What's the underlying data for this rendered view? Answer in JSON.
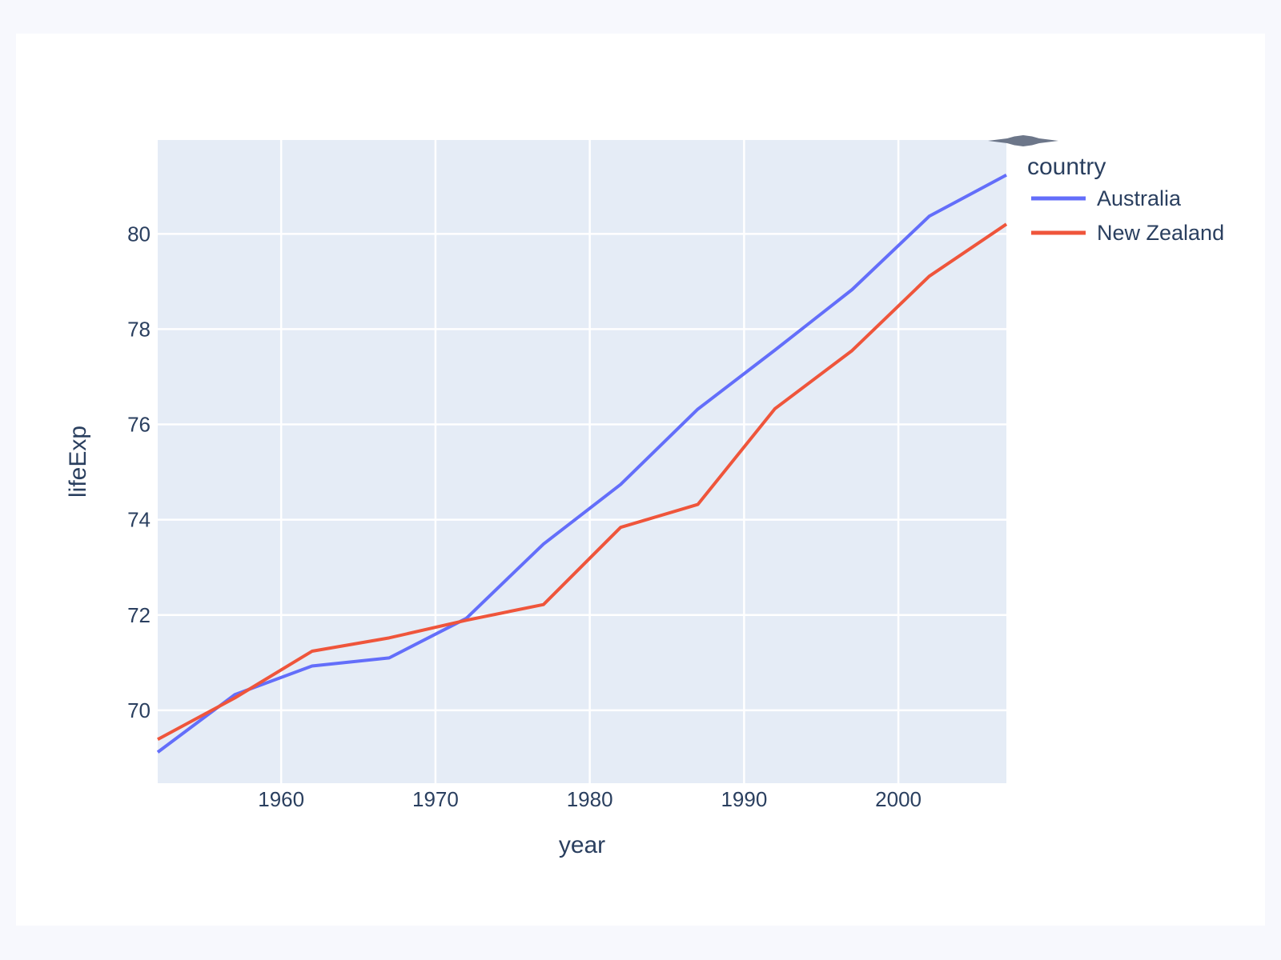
{
  "figure": {
    "legend": {
      "title": "country",
      "items": [
        {
          "label": "Australia",
          "color": "#636EFA"
        },
        {
          "label": "New Zealand",
          "color": "#EF553B"
        }
      ]
    },
    "colors": {
      "page_bg": "#F7F8FD",
      "paper_bg": "#FFFFFF",
      "plot_bg": "#E5ECF6",
      "grid": "#FFFFFF",
      "text": "#2A3F5F",
      "series_australia": "#636EFA",
      "series_new_zealand": "#EF553B",
      "modebar_icon": "#6C7689"
    },
    "icons": {
      "modebar_toggle": "collapsed-modebar-arrow"
    }
  },
  "chart_data": {
    "type": "line",
    "title": "",
    "xlabel": "year",
    "ylabel": "lifeExp",
    "legend_title": "country",
    "legend_position": "outside-top-right",
    "grid": true,
    "x": [
      1952,
      1957,
      1962,
      1967,
      1972,
      1977,
      1982,
      1987,
      1992,
      1997,
      2002,
      2007
    ],
    "series": [
      {
        "name": "Australia",
        "color": "#636EFA",
        "values": [
          69.12,
          70.33,
          70.93,
          71.1,
          71.93,
          73.49,
          74.74,
          76.32,
          77.56,
          78.83,
          80.37,
          81.235
        ]
      },
      {
        "name": "New Zealand",
        "color": "#EF553B",
        "values": [
          69.39,
          70.26,
          71.24,
          71.52,
          71.89,
          72.22,
          73.84,
          74.32,
          76.33,
          77.55,
          79.11,
          80.204
        ]
      }
    ],
    "xticks": [
      1960,
      1970,
      1980,
      1990,
      2000
    ],
    "yticks": [
      70,
      72,
      74,
      76,
      78,
      80
    ],
    "xlim": [
      1952,
      2007
    ],
    "ylim": [
      68.47,
      81.97
    ]
  }
}
